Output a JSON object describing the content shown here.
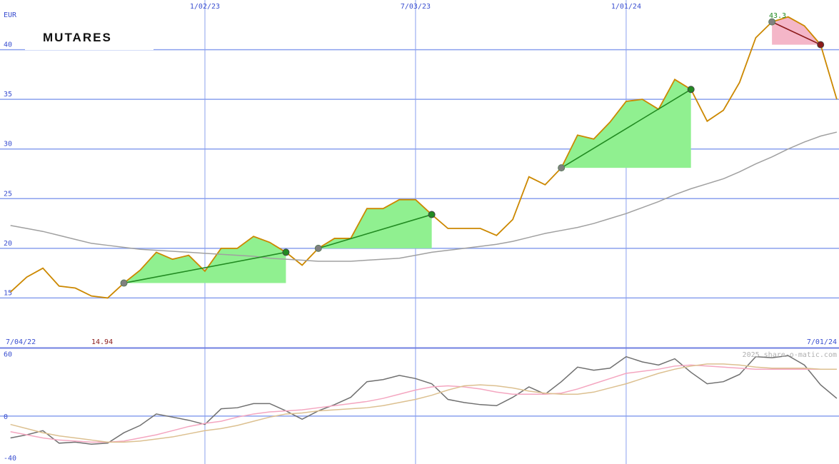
{
  "chart_data": [
    {
      "type": "line",
      "title": "MUTARES",
      "unit": "EUR",
      "start_label": "7/04/22",
      "end_label": "7/01/24",
      "low_label": "14.94",
      "high_label": "43.3",
      "categories": [
        null,
        null,
        null,
        null,
        null,
        null,
        null,
        null,
        null,
        null,
        null,
        null,
        "1/02/23",
        null,
        null,
        null,
        null,
        null,
        null,
        null,
        null,
        null,
        null,
        null,
        null,
        "7/03/23",
        null,
        null,
        null,
        null,
        null,
        null,
        null,
        null,
        null,
        null,
        null,
        null,
        "1/01/24",
        null,
        null,
        null,
        null,
        null,
        null,
        null,
        null,
        null,
        null,
        null,
        null,
        null
      ],
      "series": [
        {
          "color": "#cc8800",
          "values": [
            15.6,
            17.1,
            18.0,
            16.2,
            16.0,
            15.2,
            15.0,
            16.5,
            17.8,
            19.6,
            18.9,
            19.3,
            17.7,
            20.0,
            20.0,
            21.2,
            20.6,
            19.6,
            18.3,
            20.0,
            21.0,
            21.0,
            24.0,
            24.0,
            24.9,
            24.9,
            23.4,
            22.0,
            22.0,
            22.0,
            21.3,
            22.9,
            27.2,
            26.4,
            28.1,
            31.4,
            31.0,
            32.7,
            34.8,
            35.0,
            34.0,
            37.0,
            36.0,
            32.8,
            33.9,
            36.7,
            41.2,
            42.8,
            43.3,
            42.4,
            40.5,
            35.0
          ]
        },
        {
          "color": "#a0a0a0",
          "values": [
            22.3,
            22.0,
            21.7,
            21.3,
            20.9,
            20.5,
            20.3,
            20.1,
            19.9,
            19.8,
            19.7,
            19.6,
            19.5,
            19.4,
            19.3,
            19.2,
            19.0,
            18.9,
            18.8,
            18.7,
            18.7,
            18.7,
            18.8,
            18.9,
            19.0,
            19.3,
            19.6,
            19.8,
            20.0,
            20.2,
            20.4,
            20.7,
            21.1,
            21.5,
            21.8,
            22.1,
            22.5,
            23.0,
            23.5,
            24.1,
            24.7,
            25.4,
            26.0,
            26.5,
            27.0,
            27.7,
            28.5,
            29.2,
            30.0,
            30.7,
            31.3,
            31.7
          ]
        }
      ],
      "trends": [
        {
          "start": 7,
          "end": 17,
          "color": "#228b22",
          "fill": "#90f090"
        },
        {
          "start": 19,
          "end": 26,
          "color": "#228b22",
          "fill": "#90f090"
        },
        {
          "start": 34,
          "end": 42,
          "color": "#228b22",
          "fill": "#90f090"
        },
        {
          "start": 47,
          "end": 50,
          "color": "#8b1a1a",
          "fill": "#f4b6c8"
        }
      ],
      "ylim": [
        10,
        45
      ],
      "yticks": [
        15,
        20,
        25,
        30,
        35,
        40
      ],
      "grid": true
    },
    {
      "type": "line",
      "credit": "2025 share-o-matic.com",
      "series": [
        {
          "color": "#707070",
          "values": [
            -21,
            -18,
            -14,
            -26,
            -25,
            -27,
            -26,
            -16,
            -9,
            2,
            -1,
            -4,
            -8,
            7,
            8,
            12,
            12,
            5,
            -3,
            5,
            11,
            18,
            33,
            35,
            39,
            36,
            31,
            16,
            13,
            11,
            10,
            18,
            28,
            21,
            33,
            47,
            44,
            46,
            57,
            52,
            49,
            55,
            42,
            31,
            33,
            40,
            57,
            56,
            58,
            49,
            30,
            17
          ]
        },
        {
          "color": "#f4a6c0",
          "values": [
            -15,
            -18,
            -21,
            -23,
            -24,
            -25,
            -25,
            -24,
            -21,
            -18,
            -14,
            -10,
            -7,
            -5,
            -1,
            2,
            4,
            5,
            6,
            8,
            10,
            12,
            14,
            17,
            21,
            25,
            28,
            29,
            28,
            26,
            23,
            21,
            21,
            21,
            22,
            26,
            31,
            36,
            41,
            43,
            45,
            48,
            49,
            48,
            47,
            46,
            45,
            45,
            45,
            45,
            45,
            45
          ]
        },
        {
          "color": "#dcc090",
          "values": [
            -8,
            -12,
            -16,
            -19,
            -21,
            -23,
            -25,
            -25,
            -24,
            -22,
            -20,
            -17,
            -14,
            -12,
            -9,
            -5,
            -1,
            2,
            3,
            5,
            6,
            7,
            8,
            10,
            13,
            16,
            20,
            25,
            29,
            30,
            29,
            27,
            24,
            22,
            21,
            21,
            23,
            27,
            31,
            36,
            41,
            45,
            48,
            50,
            50,
            49,
            47,
            46,
            46,
            46,
            45,
            45
          ]
        }
      ],
      "ylim": [
        -46,
        65
      ],
      "yticks": [
        -40,
        0,
        60
      ],
      "grid": false
    }
  ]
}
